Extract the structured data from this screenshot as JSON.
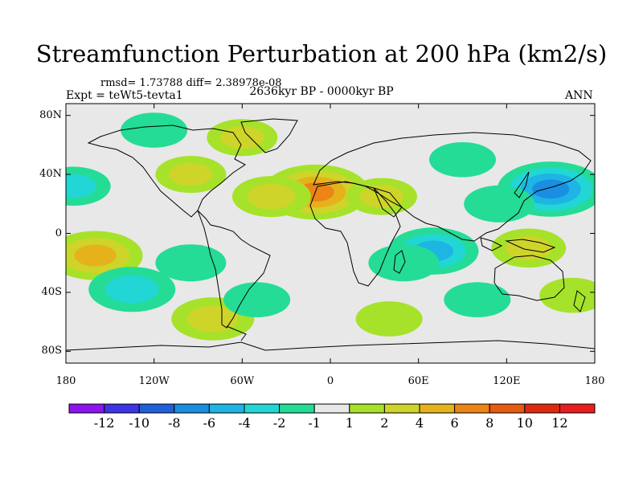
{
  "chart_data": {
    "type": "heatmap",
    "subtype": "filled-contour-map",
    "title": "Streamfunction Perturbation at 200 hPa (km2/s)",
    "stats_text": "rmsd= 1.73788 diff= 2.38978e-08",
    "experiment": "Expt = teWt5-tevta1",
    "period": "2636kyr BP - 0000kyr BP",
    "season": "ANN",
    "projection": "cylindrical equidistant",
    "x_range": [
      -180,
      180
    ],
    "y_range": [
      -90,
      90
    ],
    "x_ticks": [
      {
        "value": -180,
        "label": "180"
      },
      {
        "value": -120,
        "label": "120W"
      },
      {
        "value": -60,
        "label": "60W"
      },
      {
        "value": 0,
        "label": "0"
      },
      {
        "value": 60,
        "label": "60E"
      },
      {
        "value": 120,
        "label": "120E"
      },
      {
        "value": 180,
        "label": "180"
      }
    ],
    "y_ticks": [
      {
        "value": 80,
        "label": "80N"
      },
      {
        "value": 40,
        "label": "40N"
      },
      {
        "value": 0,
        "label": "0"
      },
      {
        "value": -40,
        "label": "40S"
      },
      {
        "value": -80,
        "label": "80S"
      }
    ],
    "colorbar": {
      "levels": [
        -12,
        -10,
        -8,
        -6,
        -4,
        -2,
        -1,
        1,
        2,
        4,
        6,
        8,
        10,
        12
      ],
      "labels": [
        "-12",
        "-10",
        "-8",
        "-6",
        "-4",
        "-2",
        "-1",
        "1",
        "2",
        "4",
        "6",
        "8",
        "10",
        "12"
      ],
      "colors": [
        "#8b14f0",
        "#3c34e6",
        "#1f60d8",
        "#1a8ee0",
        "#1eb4e4",
        "#22d6d6",
        "#24dc96",
        "#e8e8e8",
        "#a6e22a",
        "#cfd42a",
        "#e6b21c",
        "#ec8416",
        "#e85a10",
        "#e02a10",
        "#e81e1e"
      ]
    },
    "features": [
      {
        "lon": -10,
        "lat": 28,
        "value": 6.5
      },
      {
        "lon": -40,
        "lat": 25,
        "value": 3
      },
      {
        "lon": 35,
        "lat": 25,
        "value": 2
      },
      {
        "lon": 150,
        "lat": 30,
        "value": -6.5
      },
      {
        "lon": 115,
        "lat": 20,
        "value": -2
      },
      {
        "lon": 70,
        "lat": -12,
        "value": -4.5
      },
      {
        "lon": 50,
        "lat": -20,
        "value": -2
      },
      {
        "lon": 135,
        "lat": -10,
        "value": 2.5
      },
      {
        "lon": -160,
        "lat": -15,
        "value": 5
      },
      {
        "lon": -135,
        "lat": -38,
        "value": -4
      },
      {
        "lon": -80,
        "lat": -58,
        "value": 3.5
      },
      {
        "lon": -95,
        "lat": -20,
        "value": -2
      },
      {
        "lon": -175,
        "lat": 32,
        "value": -2.5
      },
      {
        "lon": -120,
        "lat": 70,
        "value": -1.5
      },
      {
        "lon": -60,
        "lat": 65,
        "value": 2
      },
      {
        "lon": -95,
        "lat": 40,
        "value": 2
      },
      {
        "lon": -50,
        "lat": -45,
        "value": -1.5
      },
      {
        "lon": 40,
        "lat": -58,
        "value": 1.5
      },
      {
        "lon": 100,
        "lat": -45,
        "value": -1.5
      },
      {
        "lon": 90,
        "lat": 50,
        "value": -1.5
      },
      {
        "lon": 165,
        "lat": -42,
        "value": 1.5
      }
    ]
  }
}
